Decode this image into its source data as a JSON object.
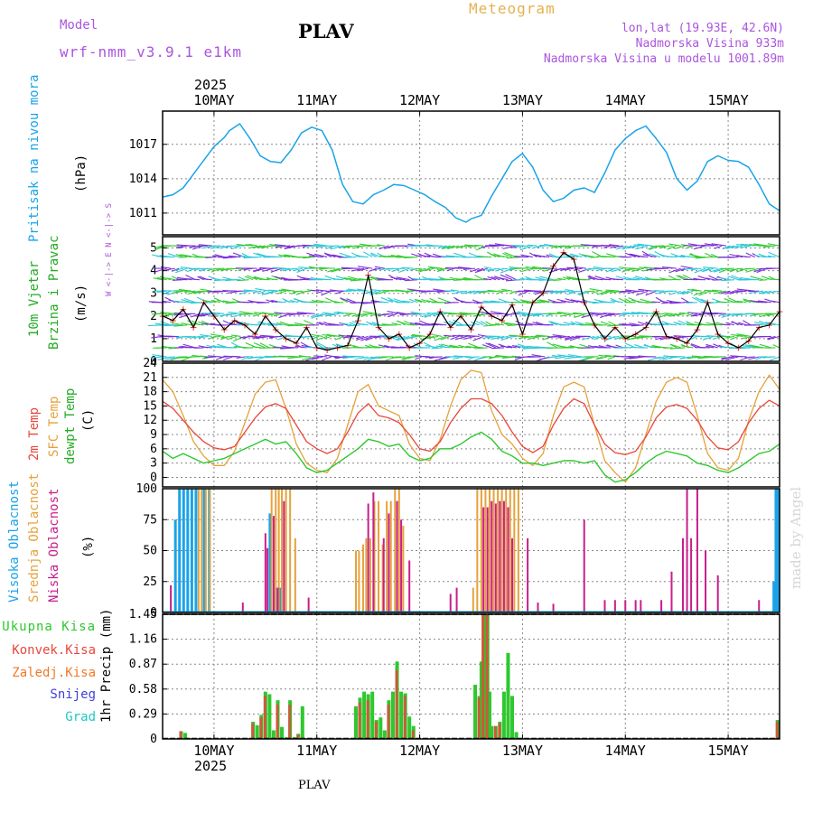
{
  "header": {
    "model_label": "Model",
    "model_name": "wrf-nmm_v3.9.1 e1km",
    "station": "PLAV",
    "title": "Meteogram",
    "lonlat": "lon,lat (19.93E, 42.6N)",
    "elevation": "Nadmorska Visina 933m",
    "model_elevation": "Nadmorska Visina u modelu 1001.89m",
    "year_top": "2025",
    "year_bottom": "2025",
    "footer_station": "PLAV",
    "watermark": "made by Angel"
  },
  "colors": {
    "pressure": "#1aa3e8",
    "temp2m": "#e8473b",
    "sfc_temp": "#e6a23c",
    "dewpt": "#2ec82e",
    "high_cloud": "#1aa3e8",
    "mid_cloud": "#e6a23c",
    "low_cloud": "#c81e8c",
    "total_precip": "#2ec82e",
    "conv_precip": "#e8473b",
    "frozen_precip": "#f07a2a",
    "snow": "#4040d8",
    "hail": "#20c8c8",
    "wind_label": "#22aa22",
    "purple_text": "#aa55dd",
    "title_orange": "#e6b050"
  },
  "panels": {
    "pressure": {
      "label": "Pritisak na nivou mora",
      "unit": "(hPa)",
      "ticks": [
        "1011",
        "1014",
        "1017"
      ]
    },
    "wind": {
      "label1": "10m Vjetar",
      "label2": "Brzina i Pravac",
      "unit": "(m/s)",
      "ticks": [
        "0",
        "1",
        "2",
        "3",
        "4",
        "5"
      ],
      "compass": "W <-|-> E   N <-|-> S"
    },
    "temp": {
      "label1": "2m Temp",
      "label2": "SFC Temp",
      "label3": "dewpt Temp",
      "unit": "(C)",
      "ticks": [
        "0",
        "3",
        "6",
        "9",
        "12",
        "15",
        "18",
        "21",
        "24"
      ]
    },
    "cloud": {
      "label1": "Visoka Oblacnost",
      "label2": "Srednja Oblacnost",
      "label3": "Niska Oblacnost",
      "unit": "(%)",
      "ticks": [
        "0",
        "25",
        "50",
        "75",
        "100"
      ]
    },
    "precip": {
      "label": "1hr Precip (mm)",
      "ticks": [
        "0",
        "0.29",
        "0.58",
        "0.87",
        "1.16",
        "1.45"
      ]
    }
  },
  "legend": {
    "total": "Ukupna Kisa",
    "conv": "Konvek.Kisa",
    "frozen": "Zaledj.Kisa",
    "snow": "Snijeg",
    "hail": "Grad"
  },
  "x_axis": {
    "dates": [
      "10MAY",
      "11MAY",
      "12MAY",
      "13MAY",
      "14MAY",
      "15MAY"
    ]
  },
  "chart_data": [
    {
      "type": "line",
      "title": "Pritisak na nivou mora",
      "ylabel": "(hPa)",
      "ylim": [
        1009.1,
        1019.9
      ],
      "x_start_day": 9.5,
      "x_end_day": 15.5,
      "series": [
        {
          "name": "Pritisak na nivou mora",
          "x": [
            9.5,
            9.6,
            9.7,
            9.85,
            10.0,
            10.1,
            10.15,
            10.25,
            10.35,
            10.45,
            10.55,
            10.65,
            10.75,
            10.85,
            10.95,
            11.05,
            11.15,
            11.25,
            11.35,
            11.45,
            11.55,
            11.65,
            11.75,
            11.85,
            11.95,
            12.05,
            12.15,
            12.25,
            12.35,
            12.45,
            12.5,
            12.6,
            12.7,
            12.8,
            12.9,
            13.0,
            13.1,
            13.2,
            13.3,
            13.4,
            13.5,
            13.6,
            13.7,
            13.8,
            13.9,
            14.0,
            14.1,
            14.2,
            14.3,
            14.4,
            14.5,
            14.6,
            14.7,
            14.8,
            14.9,
            15.0,
            15.1,
            15.2,
            15.3,
            15.4,
            15.5
          ],
          "values": [
            1012.4,
            1012.6,
            1013.2,
            1015.0,
            1016.8,
            1017.6,
            1018.2,
            1018.8,
            1017.5,
            1016.0,
            1015.5,
            1015.4,
            1016.5,
            1018.0,
            1018.5,
            1018.2,
            1016.5,
            1013.5,
            1012.0,
            1011.8,
            1012.6,
            1013.0,
            1013.5,
            1013.4,
            1013.0,
            1012.6,
            1012.0,
            1011.5,
            1010.6,
            1010.2,
            1010.5,
            1010.8,
            1012.5,
            1014.0,
            1015.5,
            1016.2,
            1015.0,
            1013.0,
            1012.0,
            1012.3,
            1013.0,
            1013.2,
            1012.8,
            1014.5,
            1016.5,
            1017.5,
            1018.2,
            1018.6,
            1017.5,
            1016.3,
            1014.0,
            1013.0,
            1013.8,
            1015.5,
            1016.0,
            1015.6,
            1015.5,
            1015.0,
            1013.5,
            1011.8,
            1011.2
          ]
        }
      ]
    },
    {
      "type": "line",
      "title": "10m Vjetar Brzina i Pravac",
      "ylabel": "(m/s)",
      "ylim": [
        0,
        5.5
      ],
      "series": [
        {
          "name": "Brzina",
          "x": [
            9.5,
            9.6,
            9.7,
            9.8,
            9.9,
            10.0,
            10.1,
            10.2,
            10.3,
            10.4,
            10.5,
            10.6,
            10.7,
            10.8,
            10.9,
            11.0,
            11.1,
            11.2,
            11.3,
            11.4,
            11.5,
            11.6,
            11.7,
            11.8,
            11.9,
            12.0,
            12.1,
            12.2,
            12.3,
            12.4,
            12.5,
            12.6,
            12.7,
            12.8,
            12.9,
            13.0,
            13.1,
            13.2,
            13.3,
            13.4,
            13.5,
            13.6,
            13.7,
            13.8,
            13.9,
            14.0,
            14.1,
            14.2,
            14.3,
            14.4,
            14.5,
            14.6,
            14.7,
            14.8,
            14.9,
            15.0,
            15.1,
            15.2,
            15.3,
            15.4,
            15.5
          ],
          "values": [
            2.0,
            1.8,
            2.3,
            1.5,
            2.6,
            2.0,
            1.4,
            1.8,
            1.6,
            1.2,
            2.0,
            1.4,
            1.0,
            0.8,
            1.5,
            0.6,
            0.5,
            0.6,
            0.7,
            1.8,
            3.8,
            1.5,
            1.0,
            1.2,
            0.6,
            0.8,
            1.2,
            2.2,
            1.5,
            2.0,
            1.4,
            2.4,
            2.0,
            1.8,
            2.5,
            1.2,
            2.6,
            3.0,
            4.2,
            4.8,
            4.5,
            2.6,
            1.6,
            1.0,
            1.5,
            1.0,
            1.2,
            1.5,
            2.2,
            1.1,
            1.0,
            0.8,
            1.4,
            2.6,
            1.2,
            0.8,
            0.6,
            0.9,
            1.5,
            1.6,
            2.2
          ]
        }
      ]
    },
    {
      "type": "line",
      "title": "2m Temp / SFC Temp / dewpt Temp",
      "ylabel": "(C)",
      "ylim": [
        -2,
        24
      ],
      "x": [
        9.5,
        9.6,
        9.7,
        9.8,
        9.9,
        10.0,
        10.1,
        10.2,
        10.3,
        10.4,
        10.5,
        10.6,
        10.7,
        10.8,
        10.9,
        11.0,
        11.1,
        11.2,
        11.3,
        11.4,
        11.5,
        11.6,
        11.7,
        11.8,
        11.9,
        12.0,
        12.1,
        12.2,
        12.3,
        12.4,
        12.5,
        12.6,
        12.7,
        12.8,
        12.9,
        13.0,
        13.1,
        13.2,
        13.3,
        13.4,
        13.5,
        13.6,
        13.7,
        13.8,
        13.9,
        14.0,
        14.1,
        14.2,
        14.3,
        14.4,
        14.5,
        14.6,
        14.7,
        14.8,
        14.9,
        15.0,
        15.1,
        15.2,
        15.3,
        15.4,
        15.5
      ],
      "series": [
        {
          "name": "2m Temp",
          "values": [
            16.0,
            14.5,
            12.0,
            9.5,
            7.5,
            6.2,
            5.8,
            6.5,
            9.5,
            12.5,
            14.8,
            15.5,
            14.5,
            11.0,
            7.5,
            6.0,
            5.0,
            6.0,
            9.5,
            13.5,
            15.5,
            13.0,
            12.5,
            11.5,
            9.0,
            6.0,
            5.5,
            7.5,
            11.5,
            14.5,
            16.5,
            16.5,
            15.5,
            13.0,
            9.5,
            6.5,
            5.2,
            6.5,
            11.0,
            14.5,
            16.5,
            15.5,
            11.0,
            7.0,
            5.2,
            4.8,
            5.5,
            8.5,
            12.5,
            14.8,
            15.3,
            14.5,
            12.0,
            8.5,
            6.2,
            5.8,
            7.5,
            11.5,
            14.5,
            16.2,
            15.0
          ]
        },
        {
          "name": "SFC Temp",
          "values": [
            20.5,
            18.0,
            13.0,
            7.5,
            4.5,
            2.5,
            2.5,
            5.5,
            11.5,
            17.5,
            20.0,
            20.5,
            14.5,
            7.0,
            3.0,
            1.5,
            1.0,
            4.0,
            11.0,
            18.0,
            19.5,
            15.0,
            14.0,
            13.0,
            7.0,
            4.0,
            3.5,
            8.0,
            15.0,
            20.5,
            22.5,
            22.0,
            14.0,
            9.0,
            7.0,
            4.0,
            2.5,
            5.0,
            13.0,
            19.0,
            20.0,
            19.0,
            11.0,
            3.5,
            1.0,
            -1.0,
            2.0,
            9.0,
            16.0,
            20.0,
            21.0,
            20.0,
            13.0,
            5.0,
            2.0,
            1.5,
            4.0,
            12.0,
            18.0,
            21.5,
            18.5
          ]
        },
        {
          "name": "dewpt Temp",
          "values": [
            5.5,
            4.0,
            5.0,
            4.0,
            3.0,
            3.5,
            4.0,
            5.0,
            6.0,
            7.0,
            8.0,
            7.0,
            7.5,
            5.0,
            2.0,
            1.0,
            1.5,
            3.0,
            4.5,
            6.0,
            8.0,
            7.5,
            6.5,
            7.0,
            4.5,
            3.5,
            4.0,
            6.0,
            6.0,
            7.0,
            8.5,
            9.5,
            8.0,
            5.5,
            4.5,
            3.0,
            3.0,
            2.5,
            3.0,
            3.5,
            3.5,
            3.0,
            3.5,
            0.5,
            -1.0,
            -0.5,
            1.0,
            3.0,
            4.5,
            5.5,
            5.0,
            4.5,
            3.0,
            2.5,
            1.5,
            1.0,
            2.0,
            3.5,
            5.0,
            5.5,
            7.0
          ]
        }
      ]
    },
    {
      "type": "bar",
      "title": "Oblacnost",
      "ylabel": "(%)",
      "ylim": [
        0,
        100
      ],
      "series": [
        {
          "name": "Visoka Oblacnost",
          "x": [
            9.62,
            9.66,
            9.7,
            9.74,
            9.78,
            9.82,
            9.9,
            9.95,
            10.54,
            10.6,
            10.64,
            15.44,
            15.46,
            15.48
          ],
          "values": [
            75,
            100,
            100,
            100,
            100,
            100,
            100,
            100,
            80,
            20,
            20,
            25,
            100,
            100
          ]
        },
        {
          "name": "Srednja Oblacnost",
          "x": [
            9.85,
            9.88,
            9.92,
            9.96,
            10.56,
            10.6,
            10.63,
            10.66,
            10.7,
            10.74,
            10.79,
            11.38,
            11.41,
            11.45,
            11.48,
            11.52,
            11.56,
            11.6,
            11.64,
            11.68,
            11.72,
            11.76,
            11.8,
            11.84,
            12.52,
            12.56,
            12.6,
            12.64,
            12.68,
            12.72,
            12.76,
            12.8,
            12.84,
            12.88,
            12.92,
            12.96
          ],
          "values": [
            100,
            100,
            100,
            100,
            100,
            100,
            100,
            100,
            100,
            100,
            60,
            50,
            50,
            55,
            60,
            60,
            90,
            90,
            55,
            90,
            90,
            100,
            100,
            70,
            20,
            100,
            100,
            100,
            100,
            100,
            100,
            100,
            100,
            100,
            100,
            100
          ]
        },
        {
          "name": "Niska Oblacnost",
          "x": [
            9.58,
            10.28,
            10.5,
            10.52,
            10.58,
            10.62,
            10.68,
            10.92,
            11.5,
            11.55,
            11.65,
            11.7,
            11.78,
            11.82,
            11.9,
            12.3,
            12.36,
            12.62,
            12.66,
            12.7,
            12.74,
            12.78,
            12.82,
            12.86,
            12.9,
            13.05,
            13.15,
            13.3,
            13.6,
            13.8,
            13.9,
            14.0,
            14.1,
            14.15,
            14.35,
            14.45,
            14.56,
            14.6,
            14.64,
            14.7,
            14.78,
            14.9,
            15.3
          ],
          "values": [
            22,
            8,
            64,
            52,
            78,
            20,
            90,
            12,
            88,
            97,
            60,
            80,
            90,
            75,
            42,
            15,
            20,
            85,
            85,
            90,
            88,
            90,
            90,
            85,
            60,
            60,
            8,
            7,
            75,
            10,
            10,
            10,
            10,
            10,
            10,
            33,
            60,
            100,
            60,
            100,
            50,
            30,
            10
          ]
        }
      ]
    },
    {
      "type": "bar",
      "title": "1hr Precip (mm)",
      "ylabel": "1hr Precip (mm)",
      "ylim": [
        0,
        1.45
      ],
      "series": [
        {
          "name": "Ukupna Kisa",
          "x": [
            9.68,
            9.72,
            10.38,
            10.42,
            10.46,
            10.5,
            10.54,
            10.58,
            10.62,
            10.66,
            10.7,
            10.74,
            10.78,
            10.82,
            10.86,
            11.38,
            11.42,
            11.46,
            11.5,
            11.54,
            11.58,
            11.62,
            11.66,
            11.7,
            11.74,
            11.78,
            11.82,
            11.86,
            11.9,
            11.94,
            12.54,
            12.58,
            12.6,
            12.62,
            12.64,
            12.66,
            12.68,
            12.7,
            12.74,
            12.78,
            12.82,
            12.86,
            12.9,
            12.94,
            15.48
          ],
          "values": [
            0.09,
            0.07,
            0.2,
            0.16,
            0.28,
            0.55,
            0.52,
            0.1,
            0.45,
            0.14,
            0.02,
            0.45,
            0.02,
            0.06,
            0.38,
            0.38,
            0.48,
            0.55,
            0.52,
            0.55,
            0.22,
            0.25,
            0.1,
            0.45,
            0.55,
            0.9,
            0.55,
            0.53,
            0.26,
            0.15,
            0.63,
            0.5,
            0.9,
            1.45,
            1.45,
            1.45,
            0.55,
            0.15,
            0.15,
            0.2,
            0.55,
            1.0,
            0.5,
            0.08,
            0.22
          ]
        },
        {
          "name": "Konvek.Kisa",
          "x": [
            9.68,
            10.38,
            10.46,
            10.5,
            10.62,
            10.74,
            10.82,
            11.42,
            11.5,
            11.58,
            11.7,
            11.78,
            11.86,
            11.94,
            12.58,
            12.62,
            12.66,
            12.74,
            12.78,
            15.48
          ],
          "values": [
            0.09,
            0.18,
            0.25,
            0.5,
            0.4,
            0.4,
            0.05,
            0.42,
            0.45,
            0.2,
            0.4,
            0.8,
            0.5,
            0.1,
            0.48,
            1.45,
            1.45,
            0.15,
            0.18,
            0.2
          ]
        }
      ]
    }
  ]
}
